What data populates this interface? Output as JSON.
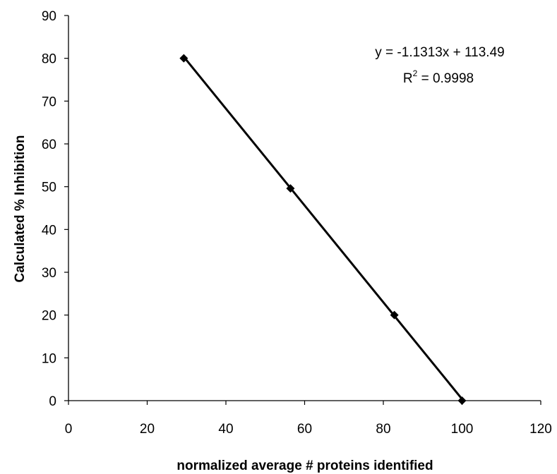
{
  "chart_data": {
    "type": "scatter",
    "xlabel": "normalized average # proteins identified",
    "ylabel": "Calculated % Inhibition",
    "xlim": [
      0,
      120
    ],
    "ylim": [
      0,
      90
    ],
    "xticks": [
      0,
      20,
      40,
      60,
      80,
      100,
      120
    ],
    "yticks": [
      0,
      10,
      20,
      30,
      40,
      50,
      60,
      70,
      80,
      90
    ],
    "grid": false,
    "series": [
      {
        "x": [
          29.3,
          56.4,
          82.8,
          100
        ],
        "y": [
          80,
          49.6,
          20,
          0
        ],
        "marker": "diamond",
        "color": "#000000"
      }
    ],
    "trendline": {
      "type": "linear",
      "slope": -1.1313,
      "intercept": 113.49,
      "x_range": [
        29.3,
        100
      ],
      "color": "#000000"
    },
    "annotations": {
      "equation": "y = -1.1313x + 113.49",
      "r2_prefix": "R",
      "r2_sup": "2",
      "r2_suffix": " = 0.9998"
    }
  }
}
